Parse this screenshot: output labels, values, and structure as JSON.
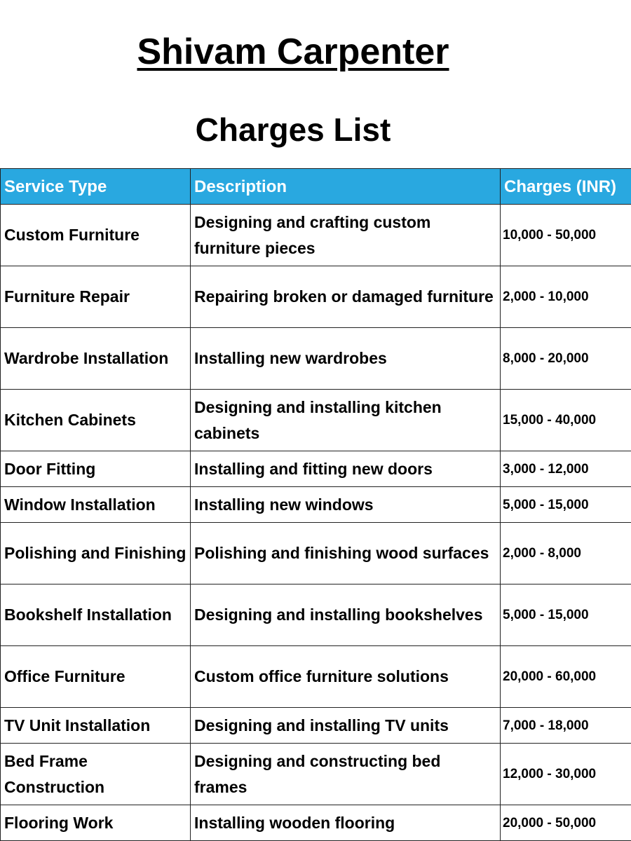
{
  "title": "Shivam Carpenter",
  "subtitle": "Charges List",
  "colors": {
    "header_bg": "#29a8e0",
    "header_text": "#ffffff"
  },
  "table": {
    "headers": [
      "Service Type",
      "Description",
      "Charges (INR)"
    ],
    "rows": [
      {
        "service": "Custom Furniture",
        "description": "Designing and crafting custom furniture pieces",
        "charges": "10,000 - 50,000"
      },
      {
        "service": "Furniture Repair",
        "description": "Repairing broken or damaged furniture",
        "charges": "2,000 - 10,000"
      },
      {
        "service": "Wardrobe Installation",
        "description": "Installing new wardrobes",
        "charges": "8,000 - 20,000"
      },
      {
        "service": "Kitchen Cabinets",
        "description": "Designing and installing kitchen cabinets",
        "charges": "15,000 - 40,000"
      },
      {
        "service": "Door Fitting",
        "description": "Installing and fitting new doors",
        "charges": "3,000 - 12,000"
      },
      {
        "service": "Window Installation",
        "description": "Installing new windows",
        "charges": "5,000 - 15,000"
      },
      {
        "service": "Polishing and Finishing",
        "description": "Polishing and finishing wood surfaces",
        "charges": "2,000 - 8,000"
      },
      {
        "service": "Bookshelf Installation",
        "description": "Designing and installing bookshelves",
        "charges": "5,000 - 15,000"
      },
      {
        "service": "Office Furniture",
        "description": "Custom office furniture solutions",
        "charges": "20,000 - 60,000"
      },
      {
        "service": "TV Unit Installation",
        "description": "Designing and installing TV units",
        "charges": "7,000 - 18,000"
      },
      {
        "service": "Bed Frame Construction",
        "description": "Designing and constructing bed frames",
        "charges": "12,000 - 30,000"
      },
      {
        "service": "Flooring Work",
        "description": "Installing wooden flooring",
        "charges": "20,000 - 50,000"
      }
    ]
  }
}
